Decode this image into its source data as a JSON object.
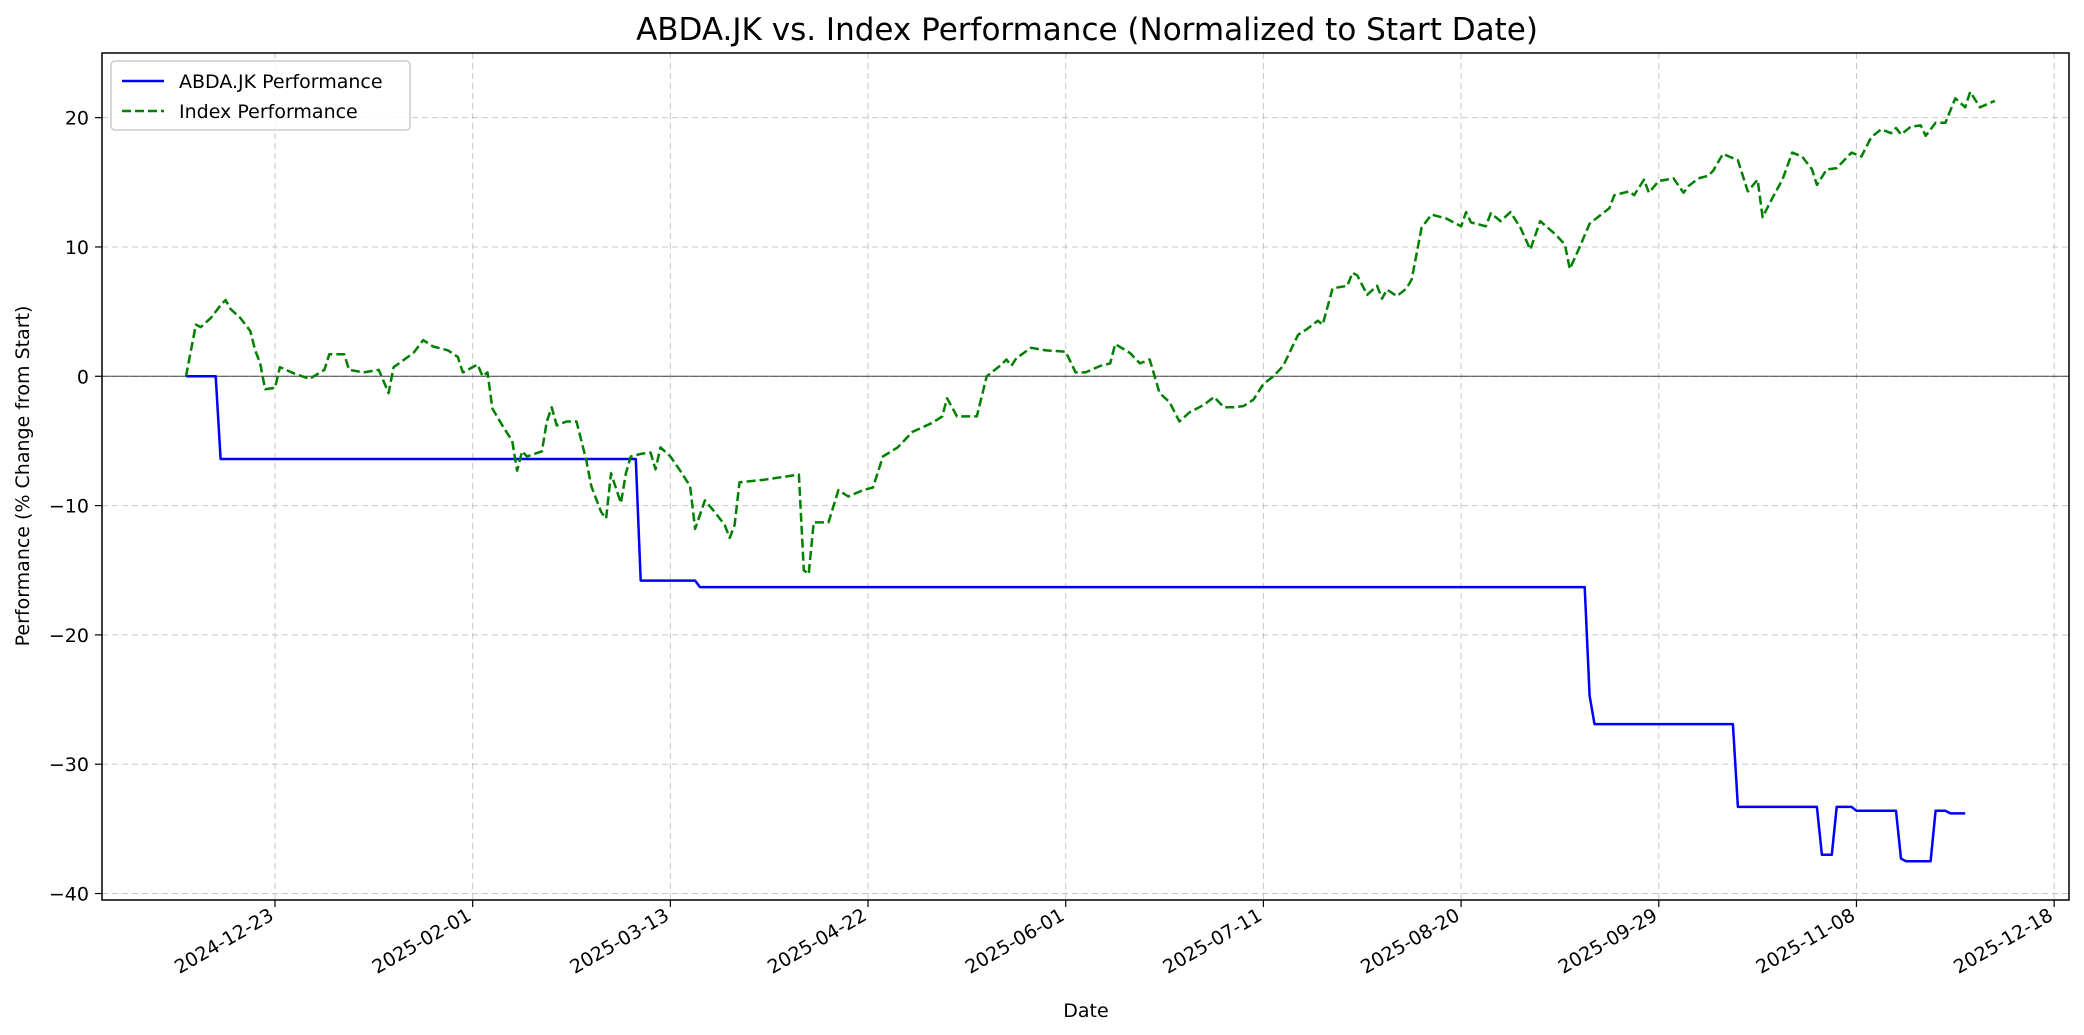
{
  "chart_data": {
    "type": "line",
    "title": "ABDA.JK vs. Index Performance (Normalized to Start Date)",
    "xlabel": "Date",
    "ylabel": "Performance (% Change from Start)",
    "ylim": [
      -40.5,
      25
    ],
    "yticks": [
      -40,
      -30,
      -20,
      -10,
      0,
      10,
      20
    ],
    "xlim": [
      "2024-11-18",
      "2025-12-21"
    ],
    "xticks": [
      "2024-12-23",
      "2025-02-01",
      "2025-03-13",
      "2025-04-22",
      "2025-06-01",
      "2025-07-11",
      "2025-08-20",
      "2025-09-29",
      "2025-11-08",
      "2025-12-18"
    ],
    "grid": true,
    "legend_position": "top-left",
    "zero_line": true,
    "series": [
      {
        "name": "ABDA.JK Performance",
        "color": "#0000ff",
        "style": "solid",
        "points": [
          [
            "2024-12-05",
            0
          ],
          [
            "2024-12-11",
            0
          ],
          [
            "2024-12-12",
            -6.4
          ],
          [
            "2025-03-06",
            -6.4
          ],
          [
            "2025-03-07",
            -15.8
          ],
          [
            "2025-03-18",
            -15.8
          ],
          [
            "2025-03-19",
            -16.3
          ],
          [
            "2025-09-14",
            -16.3
          ],
          [
            "2025-09-15",
            -24.7
          ],
          [
            "2025-09-16",
            -26.9
          ],
          [
            "2025-10-14",
            -26.9
          ],
          [
            "2025-10-15",
            -33.3
          ],
          [
            "2025-10-31",
            -33.3
          ],
          [
            "2025-11-01",
            -37.0
          ],
          [
            "2025-11-03",
            -37.0
          ],
          [
            "2025-11-04",
            -33.3
          ],
          [
            "2025-11-07",
            -33.3
          ],
          [
            "2025-11-08",
            -33.6
          ],
          [
            "2025-11-16",
            -33.6
          ],
          [
            "2025-11-17",
            -37.3
          ],
          [
            "2025-11-18",
            -37.5
          ],
          [
            "2025-11-23",
            -37.5
          ],
          [
            "2025-11-24",
            -33.6
          ],
          [
            "2025-11-26",
            -33.6
          ],
          [
            "2025-11-27",
            -33.8
          ],
          [
            "2025-11-30",
            -33.8
          ]
        ]
      },
      {
        "name": "Index Performance",
        "color": "#008000",
        "style": "dashed",
        "points": [
          [
            "2024-12-05",
            0
          ],
          [
            "2024-12-07",
            4.0
          ],
          [
            "2024-12-08",
            3.8
          ],
          [
            "2024-12-10",
            4.5
          ],
          [
            "2024-12-12",
            5.5
          ],
          [
            "2024-12-13",
            5.9
          ],
          [
            "2024-12-14",
            5.2
          ],
          [
            "2024-12-16",
            4.5
          ],
          [
            "2024-12-18",
            3.5
          ],
          [
            "2024-12-19",
            2.0
          ],
          [
            "2024-12-20",
            1.0
          ],
          [
            "2024-12-21",
            -1.0
          ],
          [
            "2024-12-23",
            -0.9
          ],
          [
            "2024-12-24",
            0.7
          ],
          [
            "2024-12-27",
            0.2
          ],
          [
            "2024-12-30",
            -0.2
          ],
          [
            "2025-01-02",
            0.5
          ],
          [
            "2025-01-03",
            1.7
          ],
          [
            "2025-01-06",
            1.7
          ],
          [
            "2025-01-07",
            0.5
          ],
          [
            "2025-01-10",
            0.3
          ],
          [
            "2025-01-13",
            0.5
          ],
          [
            "2025-01-15",
            -1.3
          ],
          [
            "2025-01-16",
            0.7
          ],
          [
            "2025-01-20",
            1.8
          ],
          [
            "2025-01-22",
            2.8
          ],
          [
            "2025-01-24",
            2.3
          ],
          [
            "2025-01-27",
            2.0
          ],
          [
            "2025-01-29",
            1.5
          ],
          [
            "2025-01-30",
            0.3
          ],
          [
            "2025-02-02",
            0.9
          ],
          [
            "2025-02-03",
            0.0
          ],
          [
            "2025-02-04",
            0.3
          ],
          [
            "2025-02-05",
            -2.5
          ],
          [
            "2025-02-07",
            -3.8
          ],
          [
            "2025-02-09",
            -5.0
          ],
          [
            "2025-02-10",
            -7.3
          ],
          [
            "2025-02-11",
            -5.8
          ],
          [
            "2025-02-12",
            -6.2
          ],
          [
            "2025-02-15",
            -5.8
          ],
          [
            "2025-02-16",
            -3.5
          ],
          [
            "2025-02-17",
            -2.4
          ],
          [
            "2025-02-18",
            -3.8
          ],
          [
            "2025-02-20",
            -3.5
          ],
          [
            "2025-02-22",
            -3.5
          ],
          [
            "2025-02-24",
            -6.5
          ],
          [
            "2025-02-25",
            -8.5
          ],
          [
            "2025-02-27",
            -10.5
          ],
          [
            "2025-02-28",
            -11.0
          ],
          [
            "2025-03-01",
            -7.5
          ],
          [
            "2025-03-03",
            -9.8
          ],
          [
            "2025-03-04",
            -7.5
          ],
          [
            "2025-03-05",
            -6.2
          ],
          [
            "2025-03-07",
            -6.0
          ],
          [
            "2025-03-09",
            -5.9
          ],
          [
            "2025-03-10",
            -7.2
          ],
          [
            "2025-03-11",
            -5.5
          ],
          [
            "2025-03-13",
            -6.2
          ],
          [
            "2025-03-15",
            -7.3
          ],
          [
            "2025-03-17",
            -8.5
          ],
          [
            "2025-03-18",
            -11.8
          ],
          [
            "2025-03-20",
            -9.6
          ],
          [
            "2025-03-22",
            -10.5
          ],
          [
            "2025-03-24",
            -11.5
          ],
          [
            "2025-03-25",
            -12.5
          ],
          [
            "2025-03-26",
            -11.5
          ],
          [
            "2025-03-27",
            -8.2
          ],
          [
            "2025-04-01",
            -8.0
          ],
          [
            "2025-04-08",
            -7.6
          ],
          [
            "2025-04-09",
            -15.0
          ],
          [
            "2025-04-10",
            -15.3
          ],
          [
            "2025-04-11",
            -11.3
          ],
          [
            "2025-04-14",
            -11.3
          ],
          [
            "2025-04-16",
            -8.8
          ],
          [
            "2025-04-18",
            -9.3
          ],
          [
            "2025-04-21",
            -8.8
          ],
          [
            "2025-04-23",
            -8.6
          ],
          [
            "2025-04-25",
            -6.2
          ],
          [
            "2025-04-28",
            -5.5
          ],
          [
            "2025-05-01",
            -4.3
          ],
          [
            "2025-05-05",
            -3.6
          ],
          [
            "2025-05-07",
            -3.1
          ],
          [
            "2025-05-08",
            -1.7
          ],
          [
            "2025-05-10",
            -3.1
          ],
          [
            "2025-05-14",
            -3.1
          ],
          [
            "2025-05-16",
            0.0
          ],
          [
            "2025-05-19",
            0.9
          ],
          [
            "2025-05-20",
            1.3
          ],
          [
            "2025-05-21",
            0.8
          ],
          [
            "2025-05-22",
            1.4
          ],
          [
            "2025-05-25",
            2.2
          ],
          [
            "2025-05-28",
            2.0
          ],
          [
            "2025-06-01",
            1.9
          ],
          [
            "2025-06-03",
            0.3
          ],
          [
            "2025-06-05",
            0.3
          ],
          [
            "2025-06-08",
            0.8
          ],
          [
            "2025-06-10",
            1.0
          ],
          [
            "2025-06-11",
            2.5
          ],
          [
            "2025-06-14",
            1.8
          ],
          [
            "2025-06-16",
            1.0
          ],
          [
            "2025-06-18",
            1.3
          ],
          [
            "2025-06-20",
            -1.3
          ],
          [
            "2025-06-22",
            -2.0
          ],
          [
            "2025-06-24",
            -3.5
          ],
          [
            "2025-06-26",
            -2.8
          ],
          [
            "2025-06-29",
            -2.2
          ],
          [
            "2025-07-01",
            -1.6
          ],
          [
            "2025-07-03",
            -2.4
          ],
          [
            "2025-07-05",
            -2.4
          ],
          [
            "2025-07-07",
            -2.3
          ],
          [
            "2025-07-09",
            -1.8
          ],
          [
            "2025-07-11",
            -0.6
          ],
          [
            "2025-07-13",
            0.0
          ],
          [
            "2025-07-15",
            0.8
          ],
          [
            "2025-07-18",
            3.2
          ],
          [
            "2025-07-20",
            3.7
          ],
          [
            "2025-07-22",
            4.3
          ],
          [
            "2025-07-23",
            4.0
          ],
          [
            "2025-07-25",
            6.8
          ],
          [
            "2025-07-28",
            7.0
          ],
          [
            "2025-07-29",
            8.0
          ],
          [
            "2025-07-30",
            7.8
          ],
          [
            "2025-08-01",
            6.3
          ],
          [
            "2025-08-03",
            7.0
          ],
          [
            "2025-08-04",
            6.0
          ],
          [
            "2025-08-05",
            6.7
          ],
          [
            "2025-08-07",
            6.2
          ],
          [
            "2025-08-09",
            6.8
          ],
          [
            "2025-08-10",
            7.5
          ],
          [
            "2025-08-12",
            11.5
          ],
          [
            "2025-08-14",
            12.5
          ],
          [
            "2025-08-17",
            12.2
          ],
          [
            "2025-08-20",
            11.6
          ],
          [
            "2025-08-21",
            12.7
          ],
          [
            "2025-08-22",
            11.9
          ],
          [
            "2025-08-25",
            11.6
          ],
          [
            "2025-08-26",
            12.6
          ],
          [
            "2025-08-28",
            12.0
          ],
          [
            "2025-08-30",
            12.7
          ],
          [
            "2025-09-01",
            11.5
          ],
          [
            "2025-09-03",
            9.8
          ],
          [
            "2025-09-05",
            12.0
          ],
          [
            "2025-09-08",
            11.0
          ],
          [
            "2025-09-10",
            10.2
          ],
          [
            "2025-09-11",
            8.3
          ],
          [
            "2025-09-13",
            10.0
          ],
          [
            "2025-09-15",
            11.8
          ],
          [
            "2025-09-17",
            12.4
          ],
          [
            "2025-09-19",
            13.0
          ],
          [
            "2025-09-20",
            14.0
          ],
          [
            "2025-09-23",
            14.3
          ],
          [
            "2025-09-24",
            14.0
          ],
          [
            "2025-09-26",
            15.2
          ],
          [
            "2025-09-27",
            14.2
          ],
          [
            "2025-09-29",
            15.1
          ],
          [
            "2025-10-02",
            15.3
          ],
          [
            "2025-10-04",
            14.2
          ],
          [
            "2025-10-05",
            14.7
          ],
          [
            "2025-10-07",
            15.3
          ],
          [
            "2025-10-09",
            15.5
          ],
          [
            "2025-10-10",
            15.9
          ],
          [
            "2025-10-12",
            17.2
          ],
          [
            "2025-10-15",
            16.7
          ],
          [
            "2025-10-17",
            14.3
          ],
          [
            "2025-10-19",
            15.2
          ],
          [
            "2025-10-20",
            12.3
          ],
          [
            "2025-10-22",
            13.8
          ],
          [
            "2025-10-24",
            15.2
          ],
          [
            "2025-10-26",
            17.3
          ],
          [
            "2025-10-28",
            17.0
          ],
          [
            "2025-10-30",
            16.0
          ],
          [
            "2025-10-31",
            14.8
          ],
          [
            "2025-11-02",
            16.0
          ],
          [
            "2025-11-04",
            16.1
          ],
          [
            "2025-11-07",
            17.3
          ],
          [
            "2025-11-09",
            17.0
          ],
          [
            "2025-11-11",
            18.5
          ],
          [
            "2025-11-13",
            19.1
          ],
          [
            "2025-11-15",
            18.8
          ],
          [
            "2025-11-16",
            19.2
          ],
          [
            "2025-11-17",
            18.7
          ],
          [
            "2025-11-19",
            19.3
          ],
          [
            "2025-11-21",
            19.4
          ],
          [
            "2025-11-22",
            18.6
          ],
          [
            "2025-11-24",
            19.6
          ],
          [
            "2025-11-26",
            19.6
          ],
          [
            "2025-11-28",
            21.5
          ],
          [
            "2025-11-30",
            20.8
          ],
          [
            "2025-12-01",
            22.0
          ],
          [
            "2025-12-03",
            20.8
          ],
          [
            "2025-12-06",
            21.3
          ]
        ]
      }
    ]
  }
}
